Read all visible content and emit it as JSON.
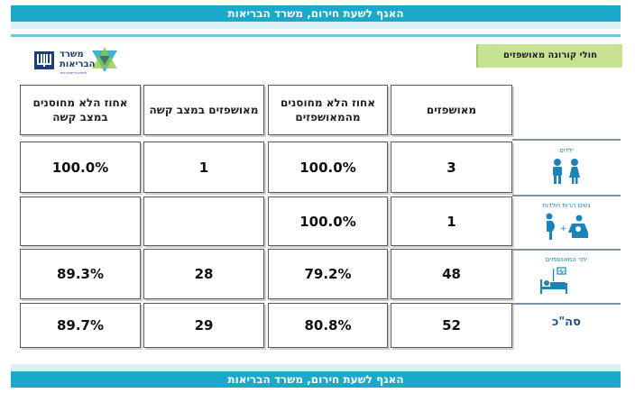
{
  "header": {
    "banner": "האגף לשעת חירום, משרד הבריאות"
  },
  "footer": {
    "banner": "האגף לשעת חירום, משרד הבריאות"
  },
  "section_title": "חולי קורונה מאושפזים",
  "logo": {
    "line1": "משרד",
    "line2": "הבריאות",
    "tagline": "לחיים בריאים יותר"
  },
  "columns": [
    "מאושפזים",
    "אחוז הלא מחוסנים מהמאושפזים",
    "מאושפזים במצב קשה",
    "אחוז הלא מחוסנים במצב קשה"
  ],
  "rows": [
    {
      "label": "ילדים",
      "icon": "children-icon",
      "hospitalized": "3",
      "unvacc_pct": "100.0%",
      "severe": "1",
      "severe_unvacc_pct": "100.0%"
    },
    {
      "label": "נשים הרות ויולדות",
      "icon": "pregnant-mother-icon",
      "hospitalized": "1",
      "unvacc_pct": "100.0%",
      "severe": "",
      "severe_unvacc_pct": ""
    },
    {
      "label": "יתר המאושפזים",
      "icon": "hospital-bed-icon",
      "hospitalized": "48",
      "unvacc_pct": "79.2%",
      "severe": "28",
      "severe_unvacc_pct": "89.3%"
    }
  ],
  "total": {
    "label": "סה\"כ",
    "hospitalized": "52",
    "unvacc_pct": "80.8%",
    "severe": "29",
    "severe_unvacc_pct": "89.7%"
  },
  "colors": {
    "banner": "#1aa9c9",
    "green_label": "#c6e393",
    "icon_blue": "#1a84b8"
  }
}
